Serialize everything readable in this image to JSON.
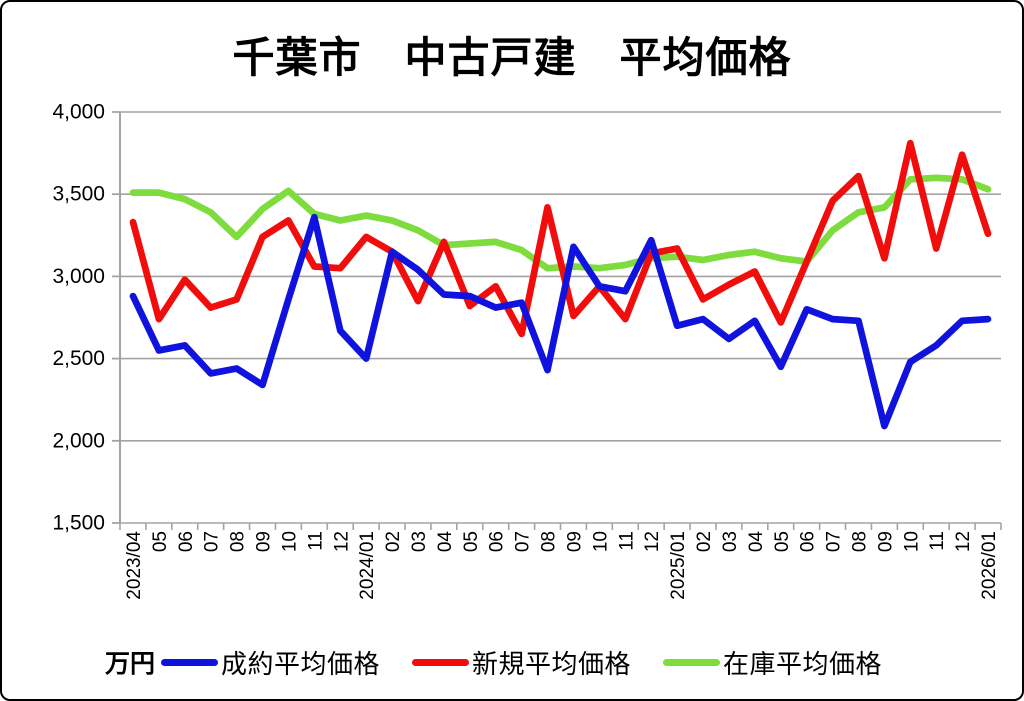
{
  "frame": {
    "title": "千葉市　中古戸建　平均価格",
    "unit_label": "万円"
  },
  "chart_data": {
    "type": "line",
    "title": "千葉市　中古戸建　平均価格",
    "ylabel": "万円",
    "ylim": [
      1500,
      4000
    ],
    "y_ticks": [
      "1,500",
      "2,000",
      "2,500",
      "3,000",
      "3,500",
      "4,000"
    ],
    "grid": true,
    "legend_position": "bottom",
    "x_labels": [
      "2023/04",
      "05",
      "06",
      "07",
      "08",
      "09",
      "10",
      "11",
      "12",
      "2024/01",
      "02",
      "03",
      "04",
      "05",
      "06",
      "07",
      "08",
      "09",
      "10",
      "11",
      "12",
      "2025/01",
      "02",
      "03",
      "04",
      "05",
      "06",
      "07",
      "08",
      "09",
      "10",
      "11",
      "12",
      "2026/01"
    ],
    "series": [
      {
        "name": "成約平均価格",
        "color": "#1012dd",
        "values": [
          2880,
          2550,
          2580,
          2410,
          2440,
          2340,
          2860,
          3360,
          2670,
          2500,
          3150,
          3040,
          2890,
          2880,
          2810,
          2840,
          2430,
          3180,
          2940,
          2910,
          3220,
          2700,
          2740,
          2620,
          2730,
          2450,
          2800,
          2740,
          2730,
          2090,
          2480,
          2580,
          2730,
          2740
        ]
      },
      {
        "name": "新規平均価格",
        "color": "#f20d0d",
        "values": [
          3330,
          2740,
          2980,
          2810,
          2860,
          3240,
          3340,
          3060,
          3050,
          3240,
          3150,
          2850,
          3210,
          2820,
          2940,
          2650,
          3420,
          2760,
          2940,
          2740,
          3140,
          3170,
          2860,
          2950,
          3030,
          2720,
          3090,
          3460,
          3610,
          3110,
          3810,
          3170,
          3740,
          3260
        ]
      },
      {
        "name": "在庫平均価格",
        "color": "#7edc3e",
        "values": [
          3510,
          3510,
          3470,
          3390,
          3240,
          3410,
          3520,
          3380,
          3340,
          3370,
          3340,
          3280,
          3190,
          3200,
          3210,
          3160,
          3050,
          3060,
          3050,
          3070,
          3110,
          3120,
          3100,
          3130,
          3150,
          3110,
          3090,
          3280,
          3390,
          3420,
          3590,
          3600,
          3590,
          3530
        ]
      }
    ],
    "axis_color": "#a3a3a3",
    "text_color": "#000000"
  }
}
